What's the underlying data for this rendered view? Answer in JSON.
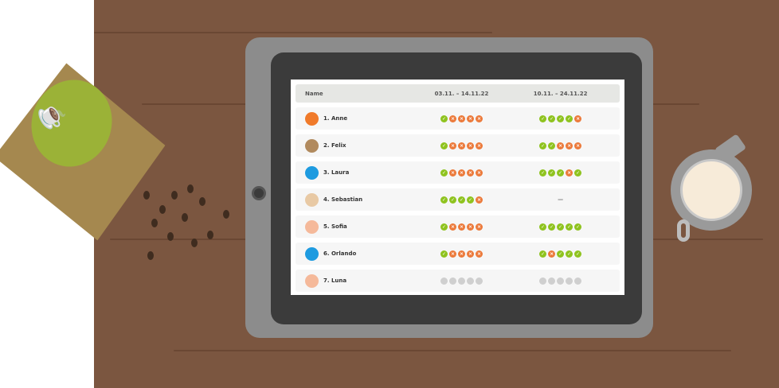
{
  "table": {
    "headers": [
      "Name",
      "03.11. – 14.11.22",
      "10.11. – 24.11.22"
    ],
    "rows": [
      {
        "name": "1. Anne",
        "avatar_color": "#f07a2a",
        "p1": [
          "c",
          "x",
          "x",
          "x",
          "x"
        ],
        "p2": [
          "c",
          "c",
          "c",
          "c",
          "x"
        ]
      },
      {
        "name": "2. Felix",
        "avatar_color": "#b18a5e",
        "p1": [
          "c",
          "x",
          "x",
          "x",
          "x"
        ],
        "p2": [
          "c",
          "c",
          "x",
          "x",
          "x"
        ]
      },
      {
        "name": "3. Laura",
        "avatar_color": "#1e9be0",
        "p1": [
          "c",
          "x",
          "x",
          "x",
          "x"
        ],
        "p2": [
          "c",
          "c",
          "c",
          "x",
          "c"
        ]
      },
      {
        "name": "4. Sebastian",
        "avatar_color": "#e8c9a4",
        "p1": [
          "c",
          "c",
          "c",
          "c",
          "x"
        ],
        "p2": "—"
      },
      {
        "name": "5. Sofia",
        "avatar_color": "#f5b99a",
        "p1": [
          "c",
          "x",
          "x",
          "x",
          "x"
        ],
        "p2": [
          "c",
          "c",
          "c",
          "c",
          "c"
        ]
      },
      {
        "name": "6. Orlando",
        "avatar_color": "#1e9be0",
        "p1": [
          "c",
          "x",
          "x",
          "x",
          "x"
        ],
        "p2": [
          "c",
          "x",
          "c",
          "c",
          "c"
        ]
      },
      {
        "name": "7. Luna",
        "avatar_color": "#f5b99a",
        "p1": [
          "p",
          "p",
          "p",
          "p",
          "p"
        ],
        "p2": [
          "p",
          "p",
          "p",
          "p",
          "p"
        ]
      }
    ]
  },
  "status_legend": {
    "c": "check-icon",
    "x": "cross-icon",
    "p": "pending-icon"
  },
  "colors": {
    "check": "#8fc31f",
    "cross": "#ec7a3b",
    "pending": "#cfcfcf",
    "wood": "#7b5640"
  },
  "decor": {
    "bag_logo": "Coffee Beans"
  }
}
